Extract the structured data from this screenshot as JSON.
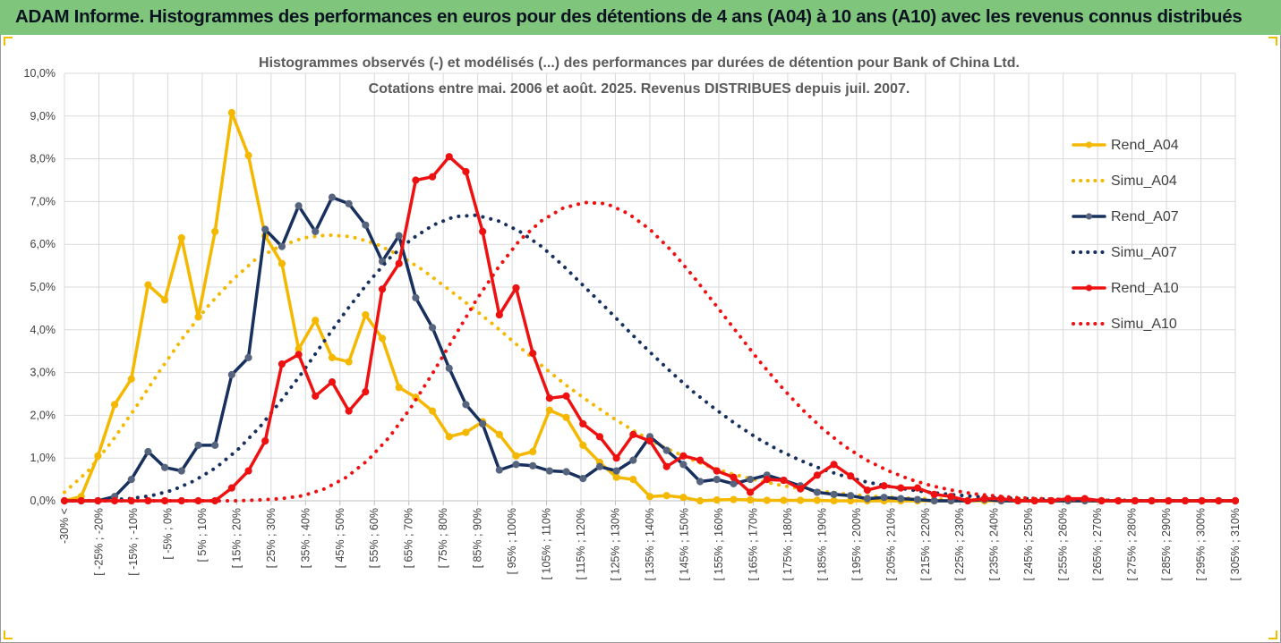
{
  "banner": {
    "title": "ADAM Informe. Histogrammes des performances en euros pour des détentions de 4 ans (A04) à 10 ans (A10) avec les revenus connus distribués"
  },
  "colors": {
    "banner": "#7fc57b",
    "A04": "#f5b800",
    "A07": "#17305e",
    "A10": "#ee1111",
    "grid": "#d9d9d9"
  },
  "chart_data": {
    "type": "line",
    "title_lines": [
      "Histogrammes observés (-) et modélisés (...) des performances par durées de détention pour Bank of China Ltd.",
      "Cotations entre mai. 2006 et août. 2025. Revenus DISTRIBUES depuis juil. 2007."
    ],
    "ylim": [
      0,
      10
    ],
    "y_ticks": [
      "0,0%",
      "1,0%",
      "2,0%",
      "3,0%",
      "4,0%",
      "5,0%",
      "6,0%",
      "7,0%",
      "8,0%",
      "9,0%",
      "10,0%"
    ],
    "grid": true,
    "legend_position": "right",
    "x_labels": [
      "-30% <",
      "[ -25% ; -20%",
      "[ -15% ; -10%",
      "[ -5% ; 0%",
      "[ 5% ; 10%",
      "[ 15% ; 20%",
      "[ 25% ; 30%",
      "[ 35% ; 40%",
      "[ 45% ; 50%",
      "[ 55% ; 60%",
      "[ 65% ; 70%",
      "[ 75% ; 80%",
      "[ 85% ; 90%",
      "[ 95% ; 100%",
      "[ 105% ; 110%",
      "[ 115% ; 120%",
      "[ 125% ; 130%",
      "[ 135% ; 140%",
      "[ 145% ; 150%",
      "[ 155% ; 160%",
      "[ 165% ; 170%",
      "[ 175% ; 180%",
      "[ 185% ; 190%",
      "[ 195% ; 200%",
      "[ 205% ; 210%",
      "[ 215% ; 220%",
      "[ 225% ; 230%",
      "[ 235% ; 240%",
      "[ 245% ; 250%",
      "[ 255% ; 260%",
      "[ 265% ; 270%",
      "[ 275% ; 280%",
      "[ 285% ; 290%",
      "[ 295% ; 300%",
      "[ 305% ; 310%"
    ],
    "series": [
      {
        "name": "Rend_A04",
        "style": "solid",
        "color": "#f5b800",
        "markers": true,
        "values": [
          0.0,
          0.1,
          1.05,
          2.25,
          2.85,
          5.05,
          4.7,
          6.15,
          4.3,
          6.3,
          9.08,
          8.08,
          6.2,
          5.55,
          3.55,
          4.22,
          3.35,
          3.25,
          4.35,
          3.8,
          2.65,
          2.42,
          2.1,
          1.5,
          1.6,
          1.85,
          1.55,
          1.05,
          1.15,
          2.12,
          1.95,
          1.3,
          0.9,
          0.55,
          0.5,
          0.1,
          0.12,
          0.08,
          0.0,
          0.02,
          0.03,
          0.02,
          0.01,
          0.01,
          0.01,
          0.01,
          0.0,
          0.0,
          0.0,
          0.0,
          0.0,
          0.0,
          0.0,
          0.0,
          0.0,
          0.0,
          0.0,
          0.0,
          0.0,
          0.0,
          0.0,
          0.0,
          0.0,
          0.0,
          0.0,
          0.0,
          0.0,
          0.0,
          0.0,
          0.0,
          0.0
        ]
      },
      {
        "name": "Simu_A04",
        "style": "dotted",
        "color": "#f5b800",
        "markers": false,
        "values": [
          0.2,
          0.7,
          1.4,
          2.2,
          3.05,
          3.85,
          4.55,
          5.15,
          5.65,
          5.95,
          6.15,
          6.22,
          6.18,
          6.02,
          5.75,
          5.4,
          4.98,
          4.55,
          4.1,
          3.62,
          3.15,
          2.7,
          2.3,
          1.92,
          1.58,
          1.28,
          1.02,
          0.8,
          0.62,
          0.48,
          0.36,
          0.27,
          0.2,
          0.14,
          0.1,
          0.07,
          0.05,
          0.03,
          0.02,
          0.01,
          0.01,
          0.0,
          0.0,
          0.0,
          0.0,
          0.0,
          0.0,
          0.0,
          0.0,
          0.0
        ]
      },
      {
        "name": "Rend_A07",
        "style": "solid",
        "color": "#17305e",
        "markers": true,
        "values": [
          0.0,
          0.0,
          0.0,
          0.1,
          0.5,
          1.15,
          0.78,
          0.7,
          1.3,
          1.3,
          2.95,
          3.35,
          6.35,
          5.95,
          6.9,
          6.3,
          7.1,
          6.95,
          6.45,
          5.6,
          6.2,
          4.75,
          4.05,
          3.1,
          2.25,
          1.8,
          0.72,
          0.85,
          0.82,
          0.7,
          0.68,
          0.52,
          0.8,
          0.7,
          0.95,
          1.5,
          1.18,
          0.85,
          0.45,
          0.5,
          0.4,
          0.5,
          0.6,
          0.48,
          0.35,
          0.2,
          0.15,
          0.12,
          0.05,
          0.08,
          0.05,
          0.03,
          0.0,
          0.0,
          0.0,
          0.03,
          0.0,
          0.0,
          0.0,
          0.0,
          0.0,
          0.0,
          0.0,
          0.0,
          0.0,
          0.0,
          0.0,
          0.0,
          0.0,
          0.0,
          0.0
        ]
      },
      {
        "name": "Simu_A07",
        "style": "dotted",
        "color": "#17305e",
        "markers": false,
        "values": [
          0.0,
          0.0,
          0.02,
          0.05,
          0.12,
          0.25,
          0.47,
          0.78,
          1.2,
          1.72,
          2.35,
          3.02,
          3.75,
          4.45,
          5.1,
          5.68,
          6.12,
          6.45,
          6.65,
          6.68,
          6.55,
          6.3,
          5.95,
          5.5,
          5.0,
          4.5,
          3.98,
          3.48,
          3.0,
          2.55,
          2.15,
          1.78,
          1.45,
          1.17,
          0.93,
          0.73,
          0.57,
          0.44,
          0.34,
          0.26,
          0.19,
          0.14,
          0.1,
          0.07,
          0.05,
          0.04,
          0.03,
          0.02,
          0.01,
          0.01,
          0.0,
          0.0,
          0.0,
          0.0,
          0.0
        ]
      },
      {
        "name": "Rend_A10",
        "style": "solid",
        "color": "#ee1111",
        "markers": true,
        "values": [
          0.0,
          0.0,
          0.0,
          0.0,
          0.0,
          0.0,
          0.0,
          0.0,
          0.0,
          0.0,
          0.3,
          0.7,
          1.4,
          3.2,
          3.42,
          2.45,
          2.78,
          2.1,
          2.55,
          4.95,
          5.55,
          7.5,
          7.58,
          8.05,
          7.7,
          6.3,
          4.35,
          4.98,
          3.45,
          2.4,
          2.45,
          1.8,
          1.5,
          1.0,
          1.55,
          1.4,
          0.8,
          1.05,
          0.95,
          0.7,
          0.55,
          0.2,
          0.5,
          0.48,
          0.28,
          0.6,
          0.85,
          0.58,
          0.25,
          0.35,
          0.3,
          0.3,
          0.15,
          0.1,
          0.0,
          0.05,
          0.05,
          0.0,
          0.0,
          0.0,
          0.05,
          0.05,
          0.0,
          0.0,
          0.0,
          0.0,
          0.0,
          0.0,
          0.0,
          0.0,
          0.0
        ]
      },
      {
        "name": "Simu_A10",
        "style": "dotted",
        "color": "#ee1111",
        "markers": false,
        "values": [
          0.0,
          0.0,
          0.0,
          0.0,
          0.0,
          0.0,
          0.0,
          0.0,
          0.0,
          0.02,
          0.05,
          0.12,
          0.28,
          0.55,
          0.95,
          1.5,
          2.2,
          3.0,
          3.85,
          4.7,
          5.45,
          6.1,
          6.55,
          6.85,
          6.98,
          6.95,
          6.72,
          6.35,
          5.85,
          5.25,
          4.6,
          3.95,
          3.3,
          2.7,
          2.15,
          1.67,
          1.27,
          0.95,
          0.7,
          0.5,
          0.35,
          0.24,
          0.16,
          0.11,
          0.07,
          0.05,
          0.03,
          0.02,
          0.01,
          0.0,
          0.0,
          0.0,
          0.0,
          0.0,
          0.0
        ]
      }
    ]
  }
}
